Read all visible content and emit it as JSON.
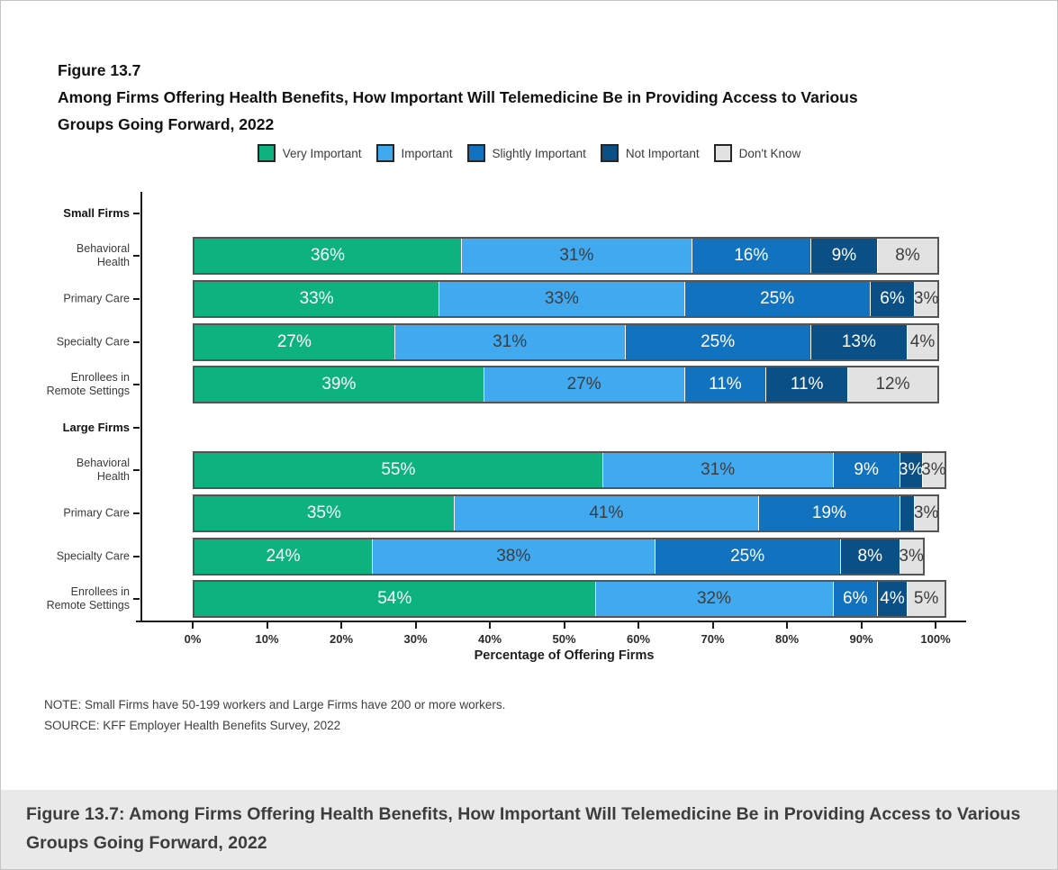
{
  "figure": {
    "label": "Figure 13.7",
    "title": "Among Firms Offering Health Benefits, How Important Will Telemedicine Be in Providing Access to Various Groups Going Forward, 2022"
  },
  "chart_data": {
    "type": "bar",
    "variant": "horizontal-stacked",
    "unit": "%",
    "title": "Among Firms Offering Health Benefits, How Important Will Telemedicine Be in Providing Access to Various Groups Going Forward, 2022",
    "xlabel": "Percentage of Offering Firms",
    "xlim": [
      0,
      100
    ],
    "x_tick_labels": [
      "0%",
      "10%",
      "20%",
      "30%",
      "40%",
      "50%",
      "60%",
      "70%",
      "80%",
      "90%",
      "100%"
    ],
    "legend_position": "top",
    "min_label_value": 3,
    "series": [
      {
        "name": "Very Important",
        "color": "#0db27e",
        "label_color": "#ffffff"
      },
      {
        "name": "Important",
        "color": "#41a9f0",
        "label_color": "#3d3d3d"
      },
      {
        "name": "Slightly Important",
        "color": "#1173c0",
        "label_color": "#ffffff"
      },
      {
        "name": "Not Important",
        "color": "#0b4f87",
        "label_color": "#ffffff"
      },
      {
        "name": "Don't Know",
        "color": "#e2e2e2",
        "label_color": "#3d3d3d"
      }
    ],
    "groups": [
      {
        "header": "Small Firms",
        "rows": [
          {
            "category": "Behavioral\nHealth",
            "values": [
              36,
              31,
              16,
              9,
              8
            ]
          },
          {
            "category": "Primary Care",
            "values": [
              33,
              33,
              25,
              6,
              3
            ]
          },
          {
            "category": "Specialty Care",
            "values": [
              27,
              31,
              25,
              13,
              4
            ]
          },
          {
            "category": "Enrollees in\nRemote Settings",
            "values": [
              39,
              27,
              11,
              11,
              12
            ]
          }
        ]
      },
      {
        "header": "Large Firms",
        "rows": [
          {
            "category": "Behavioral\nHealth",
            "values": [
              55,
              31,
              9,
              3,
              3
            ]
          },
          {
            "category": "Primary Care",
            "values": [
              35,
              41,
              19,
              2,
              3
            ]
          },
          {
            "category": "Specialty Care",
            "values": [
              24,
              38,
              25,
              8,
              3
            ]
          },
          {
            "category": "Enrollees in\nRemote Settings",
            "values": [
              54,
              32,
              6,
              4,
              5
            ]
          }
        ]
      }
    ]
  },
  "notes": {
    "note": "NOTE: Small Firms have 50-199 workers and Large Firms have 200 or more workers.",
    "source": "SOURCE: KFF Employer Health Benefits Survey, 2022"
  },
  "caption": "Figure 13.7: Among Firms Offering Health Benefits, How Important Will Telemedicine Be in Providing Access to Various Groups Going Forward, 2022"
}
